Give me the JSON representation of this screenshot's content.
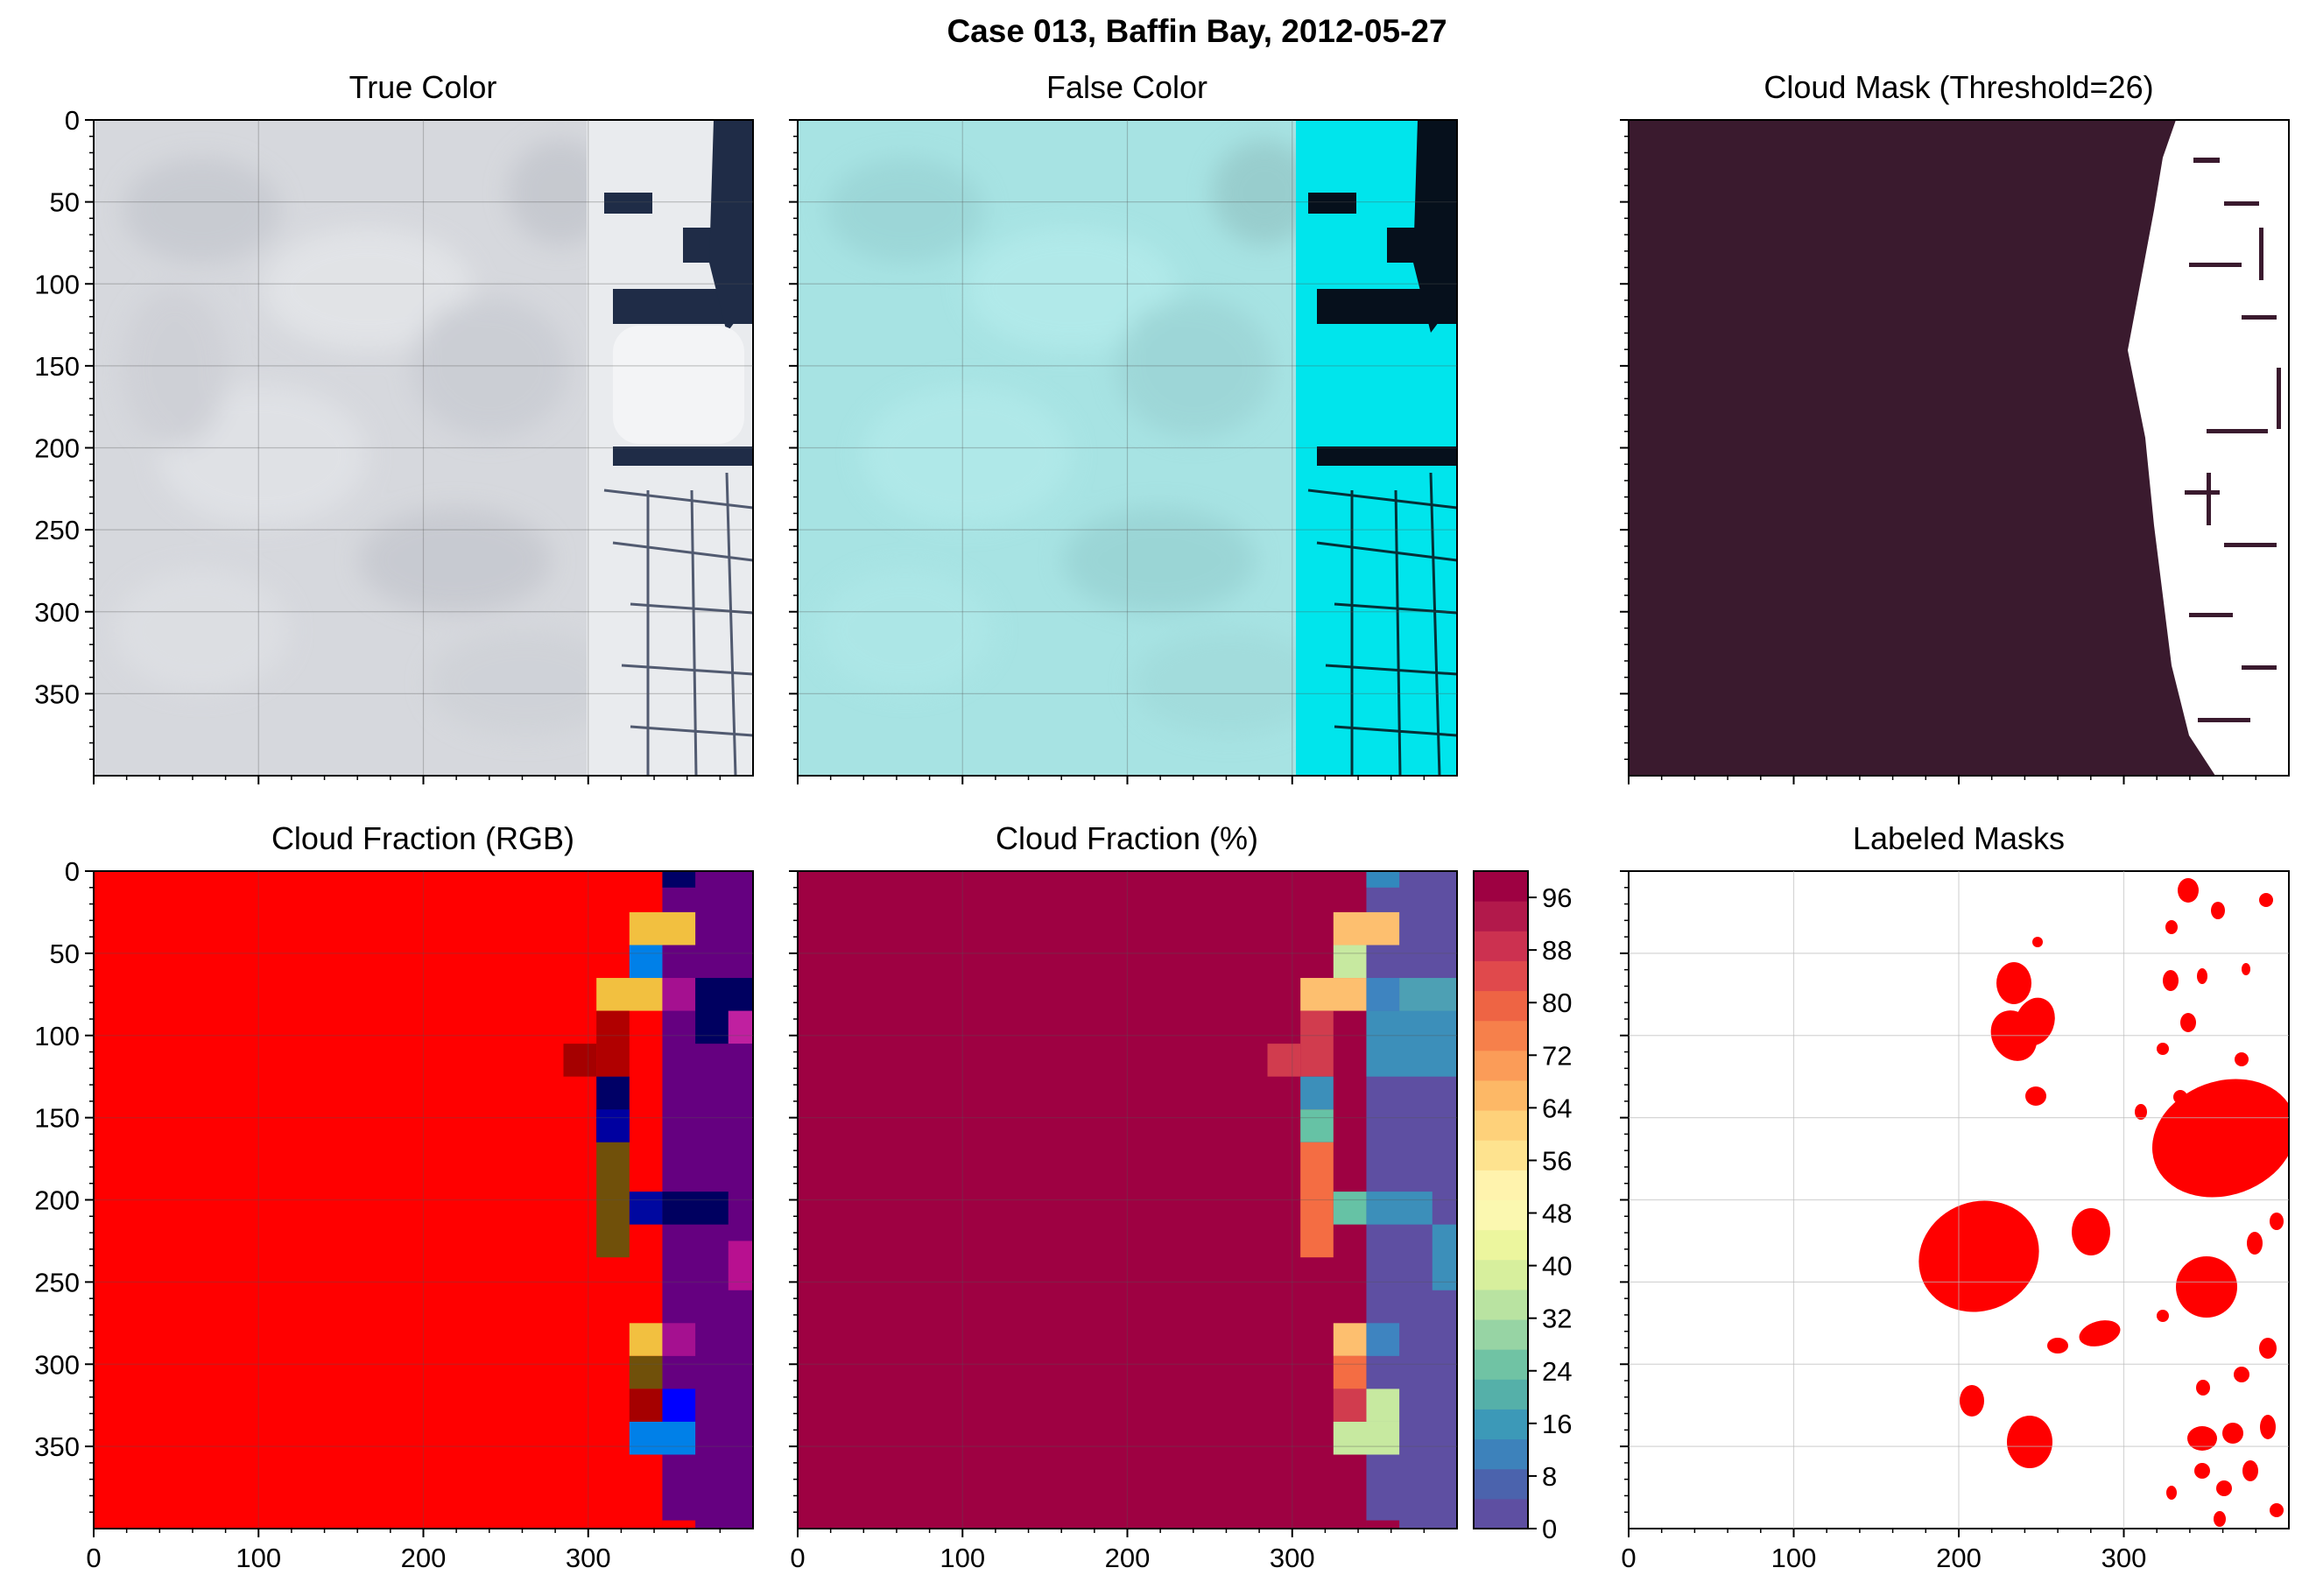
{
  "figure": {
    "suptitle": "Case 013, Baffin Bay, 2012-05-27"
  },
  "chart_data": [
    {
      "id": "true_color",
      "type": "image",
      "title": "True Color",
      "xlim": [
        0,
        400
      ],
      "ylim": [
        400,
        0
      ],
      "yticks": [
        0,
        50,
        100,
        150,
        200,
        250,
        300,
        350
      ],
      "xticks": [],
      "grid": true,
      "description_colors": {
        "cloud": "#d9dbdf",
        "ice": "#eef0f3",
        "water": "#1c2a44"
      }
    },
    {
      "id": "false_color",
      "type": "image",
      "title": "False Color",
      "xlim": [
        0,
        400
      ],
      "ylim": [
        400,
        0
      ],
      "yticks": [],
      "xticks": [],
      "grid": true,
      "description_colors": {
        "cloud": "#a6e4e4",
        "ice": "#00e8ee",
        "water": "#06101c"
      }
    },
    {
      "id": "cloud_mask",
      "type": "heatmap",
      "title": "Cloud Mask (Threshold=26)",
      "xlim": [
        0,
        400
      ],
      "ylim": [
        400,
        0
      ],
      "yticks": [],
      "xticks": [],
      "grid": false,
      "colors": {
        "cloud": "#3a1a2e",
        "clear": "#ffffff"
      }
    },
    {
      "id": "cloud_fraction_rgb",
      "type": "heatmap",
      "title": "Cloud Fraction (RGB)",
      "xlim": [
        0,
        400
      ],
      "ylim": [
        400,
        0
      ],
      "xticks": [
        0,
        100,
        200,
        300
      ],
      "yticks": [
        0,
        50,
        100,
        150,
        200,
        250,
        300,
        350
      ],
      "grid": true,
      "base_color": "#ff0000"
    },
    {
      "id": "cloud_fraction_pct",
      "type": "heatmap",
      "title": "Cloud Fraction (%)",
      "xlim": [
        0,
        400
      ],
      "ylim": [
        400,
        0
      ],
      "xticks": [
        0,
        100,
        200,
        300
      ],
      "yticks": [],
      "grid": true,
      "colormap": "Spectral_r",
      "colorbar": {
        "min": 0,
        "max": 100,
        "ticks": [
          0,
          8,
          16,
          24,
          32,
          40,
          48,
          56,
          64,
          72,
          80,
          88,
          96
        ]
      }
    },
    {
      "id": "labeled_masks",
      "type": "scatter",
      "title": "Labeled Masks",
      "xlim": [
        0,
        400
      ],
      "ylim": [
        400,
        0
      ],
      "xticks": [
        0,
        100,
        200,
        300
      ],
      "yticks": [],
      "grid": true,
      "floe_color": "#ff0000"
    }
  ]
}
